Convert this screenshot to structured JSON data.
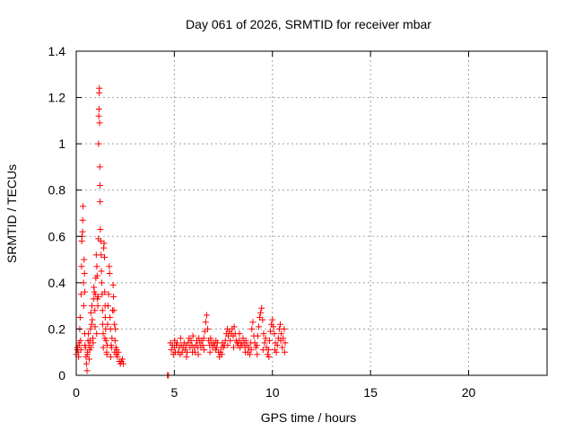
{
  "chart_data": {
    "type": "scatter",
    "title": "Day 061 of 2026, SRMTID for receiver mbar",
    "xlabel": "GPS time / hours",
    "ylabel": "SRMTID / TECUs",
    "xlim": [
      0,
      24
    ],
    "ylim": [
      0,
      1.4
    ],
    "xticks": [
      0,
      5,
      10,
      15,
      20
    ],
    "xtick_labels": [
      "0",
      "5",
      "10",
      "15",
      "20"
    ],
    "yticks": [
      0,
      0.2,
      0.4,
      0.6,
      0.8,
      1,
      1.2,
      1.4
    ],
    "ytick_labels": [
      "0",
      "0.2",
      "0.4",
      "0.6",
      "0.8",
      "1",
      "1.2",
      "1.4"
    ],
    "grid": true,
    "marker": "+",
    "color": "#ff0000",
    "series": [
      {
        "points": [
          [
            0.0,
            0.09
          ],
          [
            0.05,
            0.11
          ],
          [
            0.1,
            0.1
          ],
          [
            0.12,
            0.08
          ],
          [
            0.15,
            0.13
          ],
          [
            0.18,
            0.2
          ],
          [
            0.2,
            0.25
          ],
          [
            0.22,
            0.15
          ],
          [
            0.25,
            0.35
          ],
          [
            0.27,
            0.47
          ],
          [
            0.28,
            0.58
          ],
          [
            0.3,
            0.6
          ],
          [
            0.32,
            0.62
          ],
          [
            0.33,
            0.67
          ],
          [
            0.35,
            0.73
          ],
          [
            0.37,
            0.4
          ],
          [
            0.38,
            0.3
          ],
          [
            0.4,
            0.5
          ],
          [
            0.42,
            0.44
          ],
          [
            0.44,
            0.36
          ],
          [
            0.45,
            0.13
          ],
          [
            0.47,
            0.12
          ],
          [
            0.5,
            0.08
          ],
          [
            0.52,
            0.05
          ],
          [
            0.55,
            0.02
          ],
          [
            0.57,
            0.1
          ],
          [
            0.6,
            0.15
          ],
          [
            0.62,
            0.18
          ],
          [
            0.65,
            0.13
          ],
          [
            0.68,
            0.11
          ],
          [
            0.7,
            0.15
          ],
          [
            0.72,
            0.2
          ],
          [
            0.75,
            0.27
          ],
          [
            0.78,
            0.22
          ],
          [
            0.8,
            0.3
          ],
          [
            0.82,
            0.24
          ],
          [
            0.85,
            0.16
          ],
          [
            0.88,
            0.33
          ],
          [
            0.9,
            0.38
          ],
          [
            0.92,
            0.36
          ],
          [
            0.95,
            0.28
          ],
          [
            0.97,
            0.35
          ],
          [
            1.0,
            0.42
          ],
          [
            1.02,
            0.52
          ],
          [
            1.05,
            0.47
          ],
          [
            1.07,
            0.43
          ],
          [
            1.08,
            0.33
          ],
          [
            1.1,
            0.3
          ],
          [
            1.12,
            0.34
          ],
          [
            1.13,
            0.59
          ],
          [
            1.14,
            1.0
          ],
          [
            1.15,
            1.12
          ],
          [
            1.16,
            1.15
          ],
          [
            1.17,
            1.22
          ],
          [
            1.18,
            1.24
          ],
          [
            1.19,
            1.09
          ],
          [
            1.2,
            0.9
          ],
          [
            1.21,
            0.82
          ],
          [
            1.22,
            0.75
          ],
          [
            1.23,
            0.63
          ],
          [
            1.25,
            0.58
          ],
          [
            1.27,
            0.52
          ],
          [
            1.28,
            0.45
          ],
          [
            1.3,
            0.4
          ],
          [
            1.32,
            0.35
          ],
          [
            1.34,
            0.28
          ],
          [
            1.35,
            0.22
          ],
          [
            1.37,
            0.18
          ],
          [
            1.38,
            0.12
          ],
          [
            1.4,
            0.55
          ],
          [
            1.42,
            0.57
          ],
          [
            1.44,
            0.51
          ],
          [
            1.45,
            0.36
          ],
          [
            1.47,
            0.3
          ],
          [
            1.48,
            0.25
          ],
          [
            1.5,
            0.2
          ],
          [
            1.52,
            0.15
          ],
          [
            1.55,
            0.1
          ],
          [
            1.58,
            0.13
          ],
          [
            1.6,
            0.22
          ],
          [
            1.62,
            0.3
          ],
          [
            1.65,
            0.35
          ],
          [
            1.68,
            0.47
          ],
          [
            1.7,
            0.44
          ],
          [
            1.72,
            0.25
          ],
          [
            1.75,
            0.2
          ],
          [
            1.78,
            0.13
          ],
          [
            1.8,
            0.12
          ],
          [
            1.82,
            0.16
          ],
          [
            1.85,
            0.28
          ],
          [
            1.88,
            0.39
          ],
          [
            1.9,
            0.34
          ],
          [
            1.92,
            0.28
          ],
          [
            1.95,
            0.22
          ],
          [
            1.98,
            0.15
          ],
          [
            2.0,
            0.2
          ],
          [
            2.02,
            0.12
          ],
          [
            2.05,
            0.09
          ],
          [
            2.1,
            0.08
          ],
          [
            2.15,
            0.1
          ],
          [
            2.2,
            0.06
          ],
          [
            2.25,
            0.05
          ],
          [
            2.3,
            0.06
          ],
          [
            2.35,
            0.07
          ],
          [
            2.4,
            0.05
          ],
          [
            0.06,
            0.12
          ],
          [
            0.14,
            0.14
          ],
          [
            0.24,
            0.11
          ],
          [
            0.43,
            0.18
          ],
          [
            0.58,
            0.09
          ],
          [
            0.66,
            0.07
          ],
          [
            0.76,
            0.12
          ],
          [
            0.86,
            0.14
          ],
          [
            0.96,
            0.21
          ],
          [
            1.04,
            0.18
          ],
          [
            1.46,
            0.16
          ],
          [
            1.56,
            0.09
          ],
          [
            1.76,
            0.08
          ],
          [
            1.96,
            0.1
          ],
          [
            2.06,
            0.11
          ],
          [
            4.65,
            0.0
          ],
          [
            4.7,
            0.0
          ],
          [
            4.8,
            0.14
          ],
          [
            4.85,
            0.11
          ],
          [
            4.9,
            0.13
          ],
          [
            4.95,
            0.09
          ],
          [
            5.0,
            0.12
          ],
          [
            5.05,
            0.1
          ],
          [
            5.1,
            0.13
          ],
          [
            5.15,
            0.14
          ],
          [
            5.2,
            0.1
          ],
          [
            5.25,
            0.12
          ],
          [
            5.3,
            0.09
          ],
          [
            5.35,
            0.13
          ],
          [
            5.4,
            0.1
          ],
          [
            5.45,
            0.12
          ],
          [
            5.5,
            0.14
          ],
          [
            5.55,
            0.11
          ],
          [
            5.6,
            0.13
          ],
          [
            5.65,
            0.1
          ],
          [
            5.7,
            0.14
          ],
          [
            5.75,
            0.16
          ],
          [
            5.8,
            0.12
          ],
          [
            5.85,
            0.15
          ],
          [
            5.9,
            0.13
          ],
          [
            5.95,
            0.17
          ],
          [
            6.0,
            0.12
          ],
          [
            6.05,
            0.1
          ],
          [
            6.1,
            0.13
          ],
          [
            6.15,
            0.15
          ],
          [
            6.2,
            0.12
          ],
          [
            6.25,
            0.16
          ],
          [
            6.3,
            0.14
          ],
          [
            6.35,
            0.12
          ],
          [
            6.4,
            0.15
          ],
          [
            6.45,
            0.13
          ],
          [
            6.5,
            0.16
          ],
          [
            6.55,
            0.19
          ],
          [
            6.6,
            0.23
          ],
          [
            6.65,
            0.26
          ],
          [
            6.7,
            0.2
          ],
          [
            6.75,
            0.15
          ],
          [
            6.8,
            0.13
          ],
          [
            6.85,
            0.16
          ],
          [
            6.9,
            0.14
          ],
          [
            6.95,
            0.12
          ],
          [
            7.0,
            0.14
          ],
          [
            7.05,
            0.13
          ],
          [
            7.1,
            0.11
          ],
          [
            7.15,
            0.12
          ],
          [
            7.2,
            0.14
          ],
          [
            7.25,
            0.1
          ],
          [
            7.3,
            0.08
          ],
          [
            7.35,
            0.1
          ],
          [
            7.4,
            0.12
          ],
          [
            7.45,
            0.14
          ],
          [
            7.5,
            0.12
          ],
          [
            7.55,
            0.13
          ],
          [
            7.6,
            0.15
          ],
          [
            7.65,
            0.18
          ],
          [
            7.7,
            0.2
          ],
          [
            7.75,
            0.17
          ],
          [
            7.8,
            0.19
          ],
          [
            7.85,
            0.15
          ],
          [
            7.9,
            0.18
          ],
          [
            7.95,
            0.2
          ],
          [
            8.0,
            0.17
          ],
          [
            8.05,
            0.21
          ],
          [
            8.1,
            0.18
          ],
          [
            8.15,
            0.15
          ],
          [
            8.2,
            0.14
          ],
          [
            8.25,
            0.13
          ],
          [
            8.3,
            0.15
          ],
          [
            8.35,
            0.12
          ],
          [
            8.4,
            0.14
          ],
          [
            8.45,
            0.13
          ],
          [
            8.5,
            0.16
          ],
          [
            8.55,
            0.14
          ],
          [
            8.6,
            0.12
          ],
          [
            8.65,
            0.15
          ],
          [
            8.7,
            0.13
          ],
          [
            8.75,
            0.1
          ],
          [
            8.8,
            0.12
          ],
          [
            8.85,
            0.09
          ],
          [
            8.9,
            0.14
          ],
          [
            8.95,
            0.2
          ],
          [
            9.0,
            0.23
          ],
          [
            9.05,
            0.17
          ],
          [
            9.1,
            0.14
          ],
          [
            9.15,
            0.12
          ],
          [
            9.2,
            0.13
          ],
          [
            9.25,
            0.17
          ],
          [
            9.3,
            0.21
          ],
          [
            9.35,
            0.25
          ],
          [
            9.4,
            0.27
          ],
          [
            9.45,
            0.29
          ],
          [
            9.5,
            0.24
          ],
          [
            9.55,
            0.18
          ],
          [
            9.6,
            0.14
          ],
          [
            9.65,
            0.16
          ],
          [
            9.7,
            0.12
          ],
          [
            9.75,
            0.09
          ],
          [
            9.8,
            0.11
          ],
          [
            9.85,
            0.15
          ],
          [
            9.9,
            0.19
          ],
          [
            9.95,
            0.22
          ],
          [
            10.0,
            0.24
          ],
          [
            10.05,
            0.21
          ],
          [
            10.1,
            0.18
          ],
          [
            10.15,
            0.14
          ],
          [
            10.2,
            0.1
          ],
          [
            10.25,
            0.13
          ],
          [
            10.3,
            0.16
          ],
          [
            10.35,
            0.2
          ],
          [
            10.4,
            0.22
          ],
          [
            10.45,
            0.18
          ],
          [
            10.5,
            0.12
          ],
          [
            10.55,
            0.16
          ],
          [
            10.6,
            0.2
          ],
          [
            10.65,
            0.14
          ],
          [
            5.02,
            0.15
          ],
          [
            5.32,
            0.16
          ],
          [
            5.62,
            0.08
          ],
          [
            5.92,
            0.1
          ],
          [
            6.22,
            0.09
          ],
          [
            6.52,
            0.11
          ],
          [
            6.82,
            0.1
          ],
          [
            7.12,
            0.15
          ],
          [
            7.42,
            0.09
          ],
          [
            7.72,
            0.13
          ],
          [
            8.02,
            0.12
          ],
          [
            8.32,
            0.18
          ],
          [
            8.62,
            0.1
          ],
          [
            8.92,
            0.11
          ],
          [
            9.22,
            0.09
          ],
          [
            9.52,
            0.11
          ],
          [
            9.82,
            0.08
          ],
          [
            10.12,
            0.11
          ],
          [
            10.42,
            0.15
          ],
          [
            10.62,
            0.1
          ]
        ]
      }
    ]
  }
}
